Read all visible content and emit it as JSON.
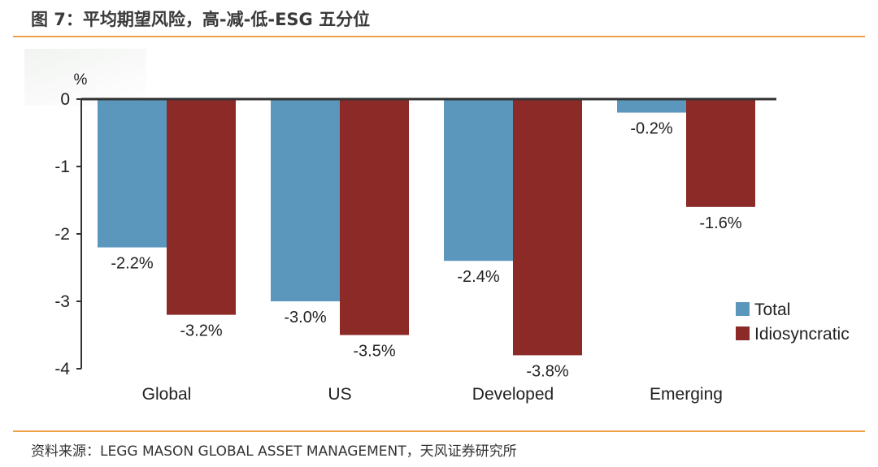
{
  "header": {
    "title": "图 7：平均期望风险，高-减-低-ESG 五分位"
  },
  "footer": {
    "source": "资料来源：LEGG MASON GLOBAL ASSET MANAGEMENT，天风证券研究所"
  },
  "chart_data": {
    "type": "bar",
    "title": "图 7：平均期望风险，高-减-低-ESG 五分位",
    "ylabel": "%",
    "xlabel": "",
    "categories": [
      "Global",
      "US",
      "Developed",
      "Emerging"
    ],
    "ylim": [
      -4,
      0
    ],
    "yticks": [
      0,
      -1,
      -2,
      -3,
      -4
    ],
    "grid": false,
    "legend_position": "right",
    "series": [
      {
        "name": "Total",
        "color": "#5b97bd",
        "values": [
          -2.2,
          -3.0,
          -2.4,
          -0.2
        ],
        "labels": [
          "-2.2%",
          "-3.0%",
          "-2.4%",
          "-0.2%"
        ]
      },
      {
        "name": "Idiosyncratic",
        "color": "#8b2a26",
        "values": [
          -3.2,
          -3.5,
          -3.8,
          -1.6
        ],
        "labels": [
          "-3.2%",
          "-3.5%",
          "-3.8%",
          "-1.6%"
        ]
      }
    ]
  }
}
